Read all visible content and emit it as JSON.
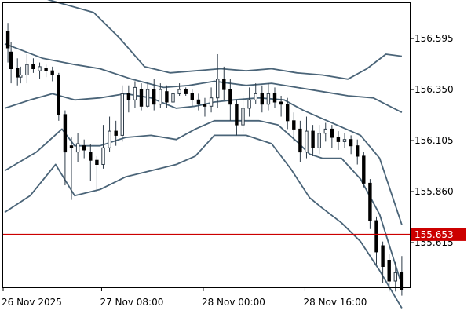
{
  "colors": {
    "background": "#ffffff",
    "frame": "#000000",
    "band": "#4a6478",
    "candle_body_up": "#ffffff",
    "candle_body_down": "#000000",
    "candle_wick": "#2d3b48",
    "price_line": "#cc0000",
    "price_tag_bg": "#cc0000",
    "price_tag_text": "#ffffff"
  },
  "chart_data": {
    "type": "candlestick",
    "title": "",
    "y_axis": {
      "min": 155.4,
      "max": 156.765,
      "ticks": [
        "156.595",
        "156.350",
        "156.105",
        "155.860",
        "155.615"
      ]
    },
    "x_axis": {
      "ticks": [
        {
          "label": "26 Nov 2025",
          "index": 0
        },
        {
          "label": "27 Nov 08:00",
          "index": 31
        },
        {
          "label": "28 Nov 00:00",
          "index": 63
        },
        {
          "label": "28 Nov 16:00",
          "index": 95
        }
      ],
      "bar_count": 128
    },
    "current_price": {
      "value": 155.653,
      "label": "155.653"
    },
    "series": [
      {
        "name": "",
        "role": "band-outer-upper",
        "values": [
          [
            0,
            156.86
          ],
          [
            14,
            156.78
          ],
          [
            28,
            156.72
          ],
          [
            36,
            156.6
          ],
          [
            44,
            156.46
          ],
          [
            52,
            156.43
          ],
          [
            60,
            156.44
          ],
          [
            68,
            156.45
          ],
          [
            76,
            156.44
          ],
          [
            84,
            156.45
          ],
          [
            92,
            156.43
          ],
          [
            100,
            156.42
          ],
          [
            108,
            156.4
          ],
          [
            114,
            156.45
          ],
          [
            120,
            156.52
          ],
          [
            125,
            156.51
          ]
        ]
      },
      {
        "name": "",
        "role": "band-inner-upper",
        "values": [
          [
            0,
            156.57
          ],
          [
            12,
            156.5
          ],
          [
            22,
            156.47
          ],
          [
            30,
            156.45
          ],
          [
            40,
            156.4
          ],
          [
            50,
            156.36
          ],
          [
            58,
            156.37
          ],
          [
            66,
            156.39
          ],
          [
            76,
            156.37
          ],
          [
            84,
            156.38
          ],
          [
            92,
            156.36
          ],
          [
            100,
            156.34
          ],
          [
            108,
            156.32
          ],
          [
            116,
            156.31
          ],
          [
            125,
            156.24
          ]
        ]
      },
      {
        "name": "",
        "role": "band-middle",
        "values": [
          [
            0,
            156.26
          ],
          [
            8,
            156.3
          ],
          [
            15,
            156.33
          ],
          [
            22,
            156.3
          ],
          [
            30,
            156.31
          ],
          [
            38,
            156.33
          ],
          [
            46,
            156.31
          ],
          [
            54,
            156.26
          ],
          [
            60,
            156.27
          ],
          [
            66,
            156.29
          ],
          [
            72,
            156.3
          ],
          [
            80,
            156.31
          ],
          [
            88,
            156.3
          ],
          [
            94,
            156.25
          ],
          [
            100,
            156.21
          ],
          [
            106,
            156.17
          ],
          [
            112,
            156.13
          ],
          [
            118,
            156.02
          ],
          [
            125,
            155.7
          ]
        ]
      },
      {
        "name": "",
        "role": "band-inner-lower",
        "values": [
          [
            0,
            155.96
          ],
          [
            10,
            156.05
          ],
          [
            18,
            156.16
          ],
          [
            22,
            156.08
          ],
          [
            30,
            156.08
          ],
          [
            38,
            156.12
          ],
          [
            46,
            156.13
          ],
          [
            54,
            156.11
          ],
          [
            60,
            156.16
          ],
          [
            66,
            156.2
          ],
          [
            74,
            156.2
          ],
          [
            80,
            156.2
          ],
          [
            86,
            156.18
          ],
          [
            92,
            156.1
          ],
          [
            96,
            156.04
          ],
          [
            100,
            156.02
          ],
          [
            106,
            156.02
          ],
          [
            112,
            155.92
          ],
          [
            118,
            155.75
          ],
          [
            125,
            155.41
          ]
        ]
      },
      {
        "name": "",
        "role": "band-outer-lower",
        "values": [
          [
            0,
            155.76
          ],
          [
            8,
            155.84
          ],
          [
            16,
            155.99
          ],
          [
            22,
            155.84
          ],
          [
            30,
            155.87
          ],
          [
            38,
            155.93
          ],
          [
            46,
            155.96
          ],
          [
            54,
            155.99
          ],
          [
            60,
            156.03
          ],
          [
            66,
            156.13
          ],
          [
            76,
            156.13
          ],
          [
            84,
            156.09
          ],
          [
            90,
            155.97
          ],
          [
            96,
            155.83
          ],
          [
            100,
            155.78
          ],
          [
            106,
            155.71
          ],
          [
            112,
            155.62
          ],
          [
            118,
            155.48
          ],
          [
            125,
            155.3
          ]
        ]
      }
    ],
    "candles": [
      [
        1,
        156.63,
        156.55,
        156.48,
        156.67
      ],
      [
        2,
        156.53,
        156.45,
        156.38,
        156.58
      ],
      [
        4,
        156.45,
        156.41,
        156.37,
        156.5
      ],
      [
        5,
        156.41,
        156.42,
        156.38,
        156.46
      ],
      [
        7,
        156.42,
        156.47,
        156.38,
        156.52
      ],
      [
        9,
        156.47,
        156.45,
        156.43,
        156.5
      ],
      [
        11,
        156.44,
        156.46,
        156.4,
        156.48
      ],
      [
        13,
        156.45,
        156.44,
        156.41,
        156.47
      ],
      [
        15,
        156.44,
        156.42,
        156.39,
        156.46
      ],
      [
        17,
        156.42,
        156.23,
        156.2,
        156.43
      ],
      [
        19,
        156.23,
        156.05,
        155.89,
        156.25
      ],
      [
        21,
        156.08,
        156.07,
        155.82,
        156.12
      ],
      [
        23,
        156.05,
        156.09,
        156.0,
        156.14
      ],
      [
        25,
        156.08,
        156.06,
        156.02,
        156.11
      ],
      [
        27,
        156.05,
        156.01,
        155.91,
        156.09
      ],
      [
        29,
        156.01,
        155.99,
        155.86,
        156.03
      ],
      [
        31,
        155.99,
        156.07,
        155.97,
        156.18
      ],
      [
        33,
        156.07,
        156.15,
        156.05,
        156.22
      ],
      [
        35,
        156.15,
        156.13,
        156.08,
        156.2
      ],
      [
        37,
        156.13,
        156.33,
        156.1,
        156.37
      ],
      [
        39,
        156.33,
        156.3,
        156.24,
        156.37
      ],
      [
        41,
        156.3,
        156.36,
        156.26,
        156.39
      ],
      [
        43,
        156.35,
        156.27,
        156.25,
        156.38
      ],
      [
        45,
        156.27,
        156.35,
        156.26,
        156.38
      ],
      [
        47,
        156.35,
        156.28,
        156.25,
        156.4
      ],
      [
        49,
        156.28,
        156.35,
        156.26,
        156.38
      ],
      [
        51,
        156.34,
        156.29,
        156.26,
        156.37
      ],
      [
        53,
        156.29,
        156.33,
        156.28,
        156.36
      ],
      [
        55,
        156.33,
        156.35,
        156.32,
        156.38
      ],
      [
        57,
        156.35,
        156.33,
        156.32,
        156.36
      ],
      [
        59,
        156.33,
        156.3,
        156.27,
        156.35
      ],
      [
        61,
        156.3,
        156.28,
        156.25,
        156.33
      ],
      [
        63,
        156.28,
        156.27,
        156.22,
        156.31
      ],
      [
        65,
        156.27,
        156.31,
        156.24,
        156.36
      ],
      [
        67,
        156.31,
        156.4,
        156.26,
        156.52
      ],
      [
        69,
        156.4,
        156.35,
        156.3,
        156.46
      ],
      [
        71,
        156.35,
        156.28,
        156.2,
        156.4
      ],
      [
        73,
        156.28,
        156.18,
        156.13,
        156.3
      ],
      [
        75,
        156.18,
        156.26,
        156.14,
        156.32
      ],
      [
        77,
        156.26,
        156.3,
        156.22,
        156.36
      ],
      [
        79,
        156.3,
        156.33,
        156.28,
        156.38
      ],
      [
        81,
        156.33,
        156.28,
        156.24,
        156.37
      ],
      [
        83,
        156.28,
        156.33,
        156.25,
        156.38
      ],
      [
        85,
        156.33,
        156.29,
        156.26,
        156.36
      ],
      [
        87,
        156.29,
        156.28,
        156.22,
        156.32
      ],
      [
        89,
        156.28,
        156.2,
        156.16,
        156.31
      ],
      [
        91,
        156.2,
        156.16,
        156.1,
        156.24
      ],
      [
        93,
        156.16,
        156.05,
        156.0,
        156.2
      ],
      [
        95,
        156.05,
        156.15,
        156.02,
        156.22
      ],
      [
        97,
        156.15,
        156.07,
        156.03,
        156.18
      ],
      [
        99,
        156.07,
        156.14,
        156.04,
        156.18
      ],
      [
        101,
        156.14,
        156.16,
        156.1,
        156.19
      ],
      [
        103,
        156.16,
        156.12,
        156.07,
        156.18
      ],
      [
        105,
        156.12,
        156.1,
        156.06,
        156.15
      ],
      [
        107,
        156.1,
        156.11,
        156.07,
        156.14
      ],
      [
        109,
        156.11,
        156.08,
        156.04,
        156.13
      ],
      [
        111,
        156.08,
        156.03,
        155.99,
        156.11
      ],
      [
        113,
        156.03,
        155.9,
        155.88,
        156.05
      ],
      [
        115,
        155.9,
        155.72,
        155.68,
        155.92
      ],
      [
        117,
        155.72,
        155.57,
        155.51,
        155.74
      ],
      [
        119,
        155.6,
        155.5,
        155.42,
        155.62
      ],
      [
        121,
        155.53,
        155.43,
        155.38,
        155.56
      ],
      [
        123,
        155.43,
        155.47,
        155.38,
        155.52
      ],
      [
        125,
        155.47,
        155.39,
        155.36,
        155.55
      ]
    ]
  }
}
